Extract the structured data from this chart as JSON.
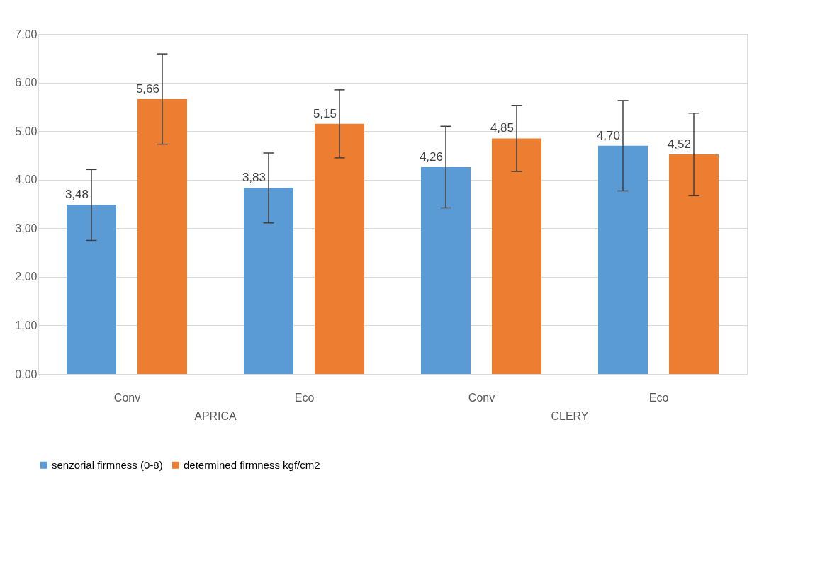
{
  "chart_data": {
    "type": "bar",
    "categories": [
      "Conv",
      "Eco",
      "Conv",
      "Eco"
    ],
    "annotations": [
      "APRICA",
      "CLERY"
    ],
    "series": [
      {
        "name": "senzorial firmness (0-8)",
        "color": "#5b9bd5",
        "values": [
          3.48,
          3.83,
          4.26,
          4.7
        ],
        "value_labels": [
          "3,48",
          "3,83",
          "4,26",
          "4,70"
        ],
        "errors": [
          0.73,
          0.72,
          0.84,
          0.93
        ]
      },
      {
        "name": "determined firmness kgf/cm2",
        "color": "#ed7d31",
        "values": [
          5.66,
          5.15,
          4.85,
          4.52
        ],
        "value_labels": [
          "5,66",
          "5,15",
          "4,85",
          "4,52"
        ],
        "errors": [
          0.93,
          0.7,
          0.68,
          0.85
        ]
      }
    ],
    "ylim": [
      0,
      7
    ],
    "yticks": [
      {
        "value": 0,
        "label": "0,00"
      },
      {
        "value": 1,
        "label": "1,00"
      },
      {
        "value": 2,
        "label": "2,00"
      },
      {
        "value": 3,
        "label": "3,00"
      },
      {
        "value": 4,
        "label": "4,00"
      },
      {
        "value": 5,
        "label": "5,00"
      },
      {
        "value": 6,
        "label": "6,00"
      },
      {
        "value": 7,
        "label": "7,00"
      }
    ],
    "grid": "y",
    "legend": "bottom"
  }
}
